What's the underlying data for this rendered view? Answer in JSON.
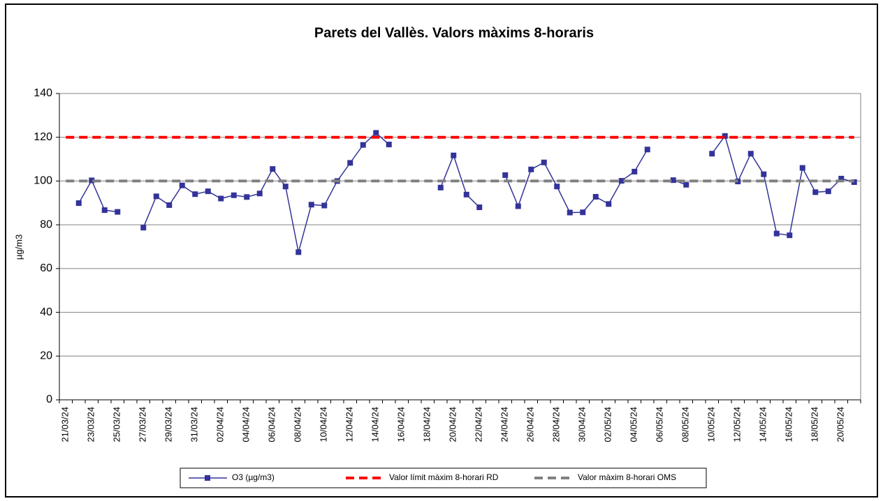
{
  "chart_data": {
    "type": "line",
    "title": "Parets del Vallès. Valors màxims 8-horaris",
    "y_label": "µg/m3",
    "categories": [
      "21/03/24",
      null,
      "23/03/24",
      null,
      "25/03/24",
      null,
      "27/03/24",
      null,
      "29/03/24",
      null,
      "31/03/24",
      null,
      "02/04/24",
      null,
      "04/04/24",
      null,
      "06/04/24",
      null,
      "08/04/24",
      null,
      "10/04/24",
      null,
      "12/04/24",
      null,
      "14/04/24",
      null,
      "16/04/24",
      null,
      "18/04/24",
      null,
      "20/04/24",
      null,
      "22/04/24",
      null,
      "24/04/24",
      null,
      "26/04/24",
      null,
      "28/04/24",
      null,
      "30/04/24",
      null,
      "02/05/24",
      null,
      "04/05/24",
      null,
      "06/05/24",
      null,
      "08/05/24",
      null,
      "10/05/24",
      null,
      "12/05/24",
      null,
      "14/05/24",
      null,
      "16/05/24",
      null,
      "18/05/24",
      null,
      "20/05/24",
      null
    ],
    "series": [
      {
        "name": "O3 (µg/m3)",
        "color": "#333399",
        "style": "solid-marker",
        "values": [
          null,
          89.9,
          100.3,
          86.7,
          85.9,
          null,
          78.7,
          93,
          89,
          98,
          94,
          95.3,
          92,
          93.5,
          92.7,
          94.3,
          105.5,
          97.5,
          67.5,
          89.2,
          88.8,
          100,
          108.3,
          116.5,
          122,
          116.7,
          null,
          null,
          null,
          97,
          111.7,
          93.8,
          88,
          null,
          102.7,
          88.5,
          105.3,
          108.5,
          97.5,
          85.6,
          85.7,
          92.8,
          89.5,
          100.1,
          104.3,
          114.4,
          null,
          100.4,
          98.3,
          null,
          112.5,
          120.6,
          99.8,
          112.5,
          103.1,
          76,
          75.2,
          106,
          94.9,
          95.3,
          101.1,
          99.5
        ]
      },
      {
        "name": "Valor límit màxim 8-horari RD",
        "color": "#ff0000",
        "style": "dashed",
        "values": [
          120,
          120,
          120,
          120,
          120,
          120,
          120,
          120,
          120,
          120,
          120,
          120,
          120,
          120,
          120,
          120,
          120,
          120,
          120,
          120,
          120,
          120,
          120,
          120,
          120,
          120,
          120,
          120,
          120,
          120,
          120,
          120,
          120,
          120,
          120,
          120,
          120,
          120,
          120,
          120,
          120,
          120,
          120,
          120,
          120,
          120,
          120,
          120,
          120,
          120,
          120,
          120,
          120,
          120,
          120,
          120,
          120,
          120,
          120,
          120,
          120,
          120
        ]
      },
      {
        "name": "Valor màxim 8-horari OMS",
        "color": "#808080",
        "style": "dashed",
        "values": [
          100,
          100,
          100,
          100,
          100,
          100,
          100,
          100,
          100,
          100,
          100,
          100,
          100,
          100,
          100,
          100,
          100,
          100,
          100,
          100,
          100,
          100,
          100,
          100,
          100,
          100,
          100,
          100,
          100,
          100,
          100,
          100,
          100,
          100,
          100,
          100,
          100,
          100,
          100,
          100,
          100,
          100,
          100,
          100,
          100,
          100,
          100,
          100,
          100,
          100,
          100,
          100,
          100,
          100,
          100,
          100,
          100,
          100,
          100,
          100,
          100,
          100
        ]
      }
    ],
    "ylim": [
      0,
      140
    ],
    "yticks": [
      0,
      20,
      40,
      60,
      80,
      100,
      120,
      140
    ],
    "grid": true,
    "legend": "bottom"
  }
}
